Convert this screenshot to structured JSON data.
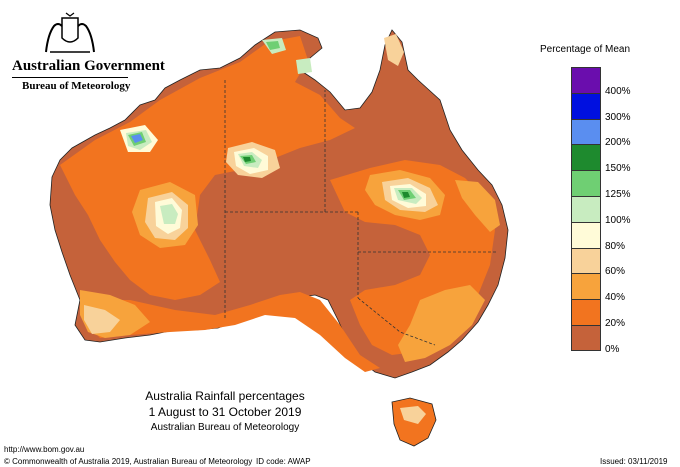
{
  "header": {
    "government": "Australian Government",
    "agency": "Bureau of Meteorology"
  },
  "legend": {
    "title": "Percentage of Mean",
    "swatches": [
      {
        "label": "400%",
        "color": "#6a0dad"
      },
      {
        "label": "300%",
        "color": "#0010e0"
      },
      {
        "label": "200%",
        "color": "#5a8ef0"
      },
      {
        "label": "150%",
        "color": "#1e8a2e"
      },
      {
        "label": "125%",
        "color": "#6fcf73"
      },
      {
        "label": "100%",
        "color": "#c8ecc0"
      },
      {
        "label": "80%",
        "color": "#fffbd8"
      },
      {
        "label": "60%",
        "color": "#f8d29a"
      },
      {
        "label": "40%",
        "color": "#f7a33c"
      },
      {
        "label": "20%",
        "color": "#f2741f"
      },
      {
        "label": "0%",
        "color": "#c5623a"
      }
    ]
  },
  "caption": {
    "title": "Australia Rainfall percentages",
    "period": "1 August to 31 October 2019",
    "source": "Australian Bureau of Meteorology"
  },
  "footer": {
    "url": "http://www.bom.gov.au",
    "copyright": "© Commonwealth of Australia 2019, Australian Bureau of Meteorology",
    "id_code": "ID code: AWAP",
    "issued": "Issued: 03/11/2019"
  },
  "map": {
    "land_base_color": "#c5623a",
    "state_border_color": "#333333"
  }
}
